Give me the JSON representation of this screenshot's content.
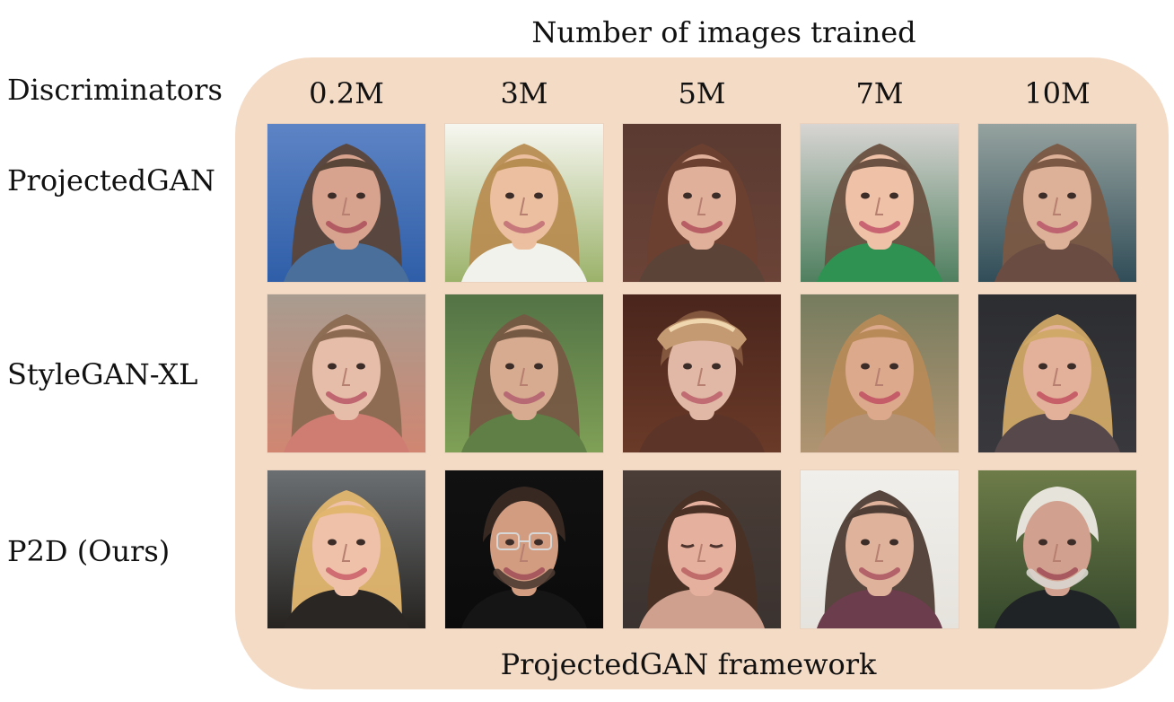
{
  "figure": {
    "top_title": "Number of images trained",
    "bottom_caption": "ProjectedGAN framework",
    "row_header": "Discriminators",
    "columns": [
      "0.2M",
      "3M",
      "5M",
      "7M",
      "10M"
    ],
    "rows": [
      "ProjectedGAN",
      "StyleGAN-XL",
      "P2D (Ours)"
    ]
  },
  "colors": {
    "panel": "#f4dbc6",
    "text": "#111111"
  },
  "faces": [
    {
      "row": 0,
      "col": 0,
      "name": "face-woman-smudged",
      "bg_top": "#5d84c5",
      "bg_bottom": "#2f5ea8",
      "skin": "#d7a38e",
      "hair": "#5a4539",
      "clothing": "#4a6f9a",
      "mouth": "#b35b62"
    },
    {
      "row": 0,
      "col": 1,
      "name": "face-woman-blonde-bob",
      "bg_top": "#f7f7f1",
      "bg_bottom": "#9bb26a",
      "skin": "#ebbf9f",
      "hair": "#b88d52",
      "clothing": "#f2f2ed",
      "mouth": "#c7787a"
    },
    {
      "row": 0,
      "col": 2,
      "name": "face-woman-brown-curly",
      "bg_top": "#5a3a31",
      "bg_bottom": "#6b4337",
      "skin": "#e0b09a",
      "hair": "#6b4030",
      "clothing": "#5c4338",
      "mouth": "#b85e65"
    },
    {
      "row": 0,
      "col": 3,
      "name": "face-girl-smiling",
      "bg_top": "#d8d5d3",
      "bg_bottom": "#4f7f5f",
      "skin": "#efc1a6",
      "hair": "#6a5141",
      "clothing": "#2f9252",
      "mouth": "#c96472"
    },
    {
      "row": 0,
      "col": 4,
      "name": "face-woman-long-hair",
      "bg_top": "#95a29f",
      "bg_bottom": "#314d58",
      "skin": "#ddb198",
      "hair": "#7a5844",
      "clothing": "#6b4c42",
      "mouth": "#bd6470"
    },
    {
      "row": 1,
      "col": 0,
      "name": "face-baby",
      "bg_top": "#a89c90",
      "bg_bottom": "#d08671",
      "skin": "#e6bda9",
      "hair": "#8b6a51",
      "clothing": "#cf7d72",
      "mouth": "#bf6670"
    },
    {
      "row": 1,
      "col": 1,
      "name": "face-short-hair",
      "bg_top": "#537346",
      "bg_bottom": "#7fa056",
      "skin": "#d7ab90",
      "hair": "#765943",
      "clothing": "#5f7f46",
      "mouth": "#b86a74"
    },
    {
      "row": 1,
      "col": 2,
      "name": "face-with-cap",
      "bg_top": "#4a251c",
      "bg_bottom": "#6a3a28",
      "skin": "#e0b8a5",
      "hair": "#855a40",
      "clothing": "#5d3528",
      "mouth": "#c06c72"
    },
    {
      "row": 1,
      "col": 3,
      "name": "face-woman-wavy-hair",
      "bg_top": "#767c5f",
      "bg_bottom": "#b09471",
      "skin": "#dca98c",
      "hair": "#b78a58",
      "clothing": "#b59174",
      "mouth": "#c45d68"
    },
    {
      "row": 1,
      "col": 4,
      "name": "face-woman-blonde-smile",
      "bg_top": "#2c2d31",
      "bg_bottom": "#39393d",
      "skin": "#e3b09a",
      "hair": "#d0a867",
      "clothing": "#57494b",
      "mouth": "#c75f68"
    },
    {
      "row": 2,
      "col": 0,
      "name": "face-blonde-woman",
      "bg_top": "#6b6f72",
      "bg_bottom": "#262320",
      "skin": "#efc1a9",
      "hair": "#e2b66f",
      "clothing": "#2a2624",
      "mouth": "#cf6d72"
    },
    {
      "row": 2,
      "col": 1,
      "name": "face-bald-man-glasses",
      "bg_top": "#111111",
      "bg_bottom": "#0b0b0b",
      "skin": "#d29c81",
      "hair": "#3a2b24",
      "clothing": "#151515",
      "mouth": "#a8595e"
    },
    {
      "row": 2,
      "col": 2,
      "name": "face-woman-eyes-closed",
      "bg_top": "#4a3c36",
      "bg_bottom": "#3b3330",
      "skin": "#e5b09d",
      "hair": "#4a3025",
      "clothing": "#cfa08d",
      "mouth": "#bf6c6a"
    },
    {
      "row": 2,
      "col": 3,
      "name": "face-man-suit",
      "bg_top": "#f0efeb",
      "bg_bottom": "#e6e3dd",
      "skin": "#dfb29b",
      "hair": "#4e3d34",
      "clothing": "#6c3d4c",
      "mouth": "#b4626a"
    },
    {
      "row": 2,
      "col": 4,
      "name": "face-elderly-man",
      "bg_top": "#6d7c48",
      "bg_bottom": "#35482c",
      "skin": "#d2a08e",
      "hair": "#ece9e3",
      "clothing": "#202325",
      "mouth": "#a7595f"
    }
  ]
}
